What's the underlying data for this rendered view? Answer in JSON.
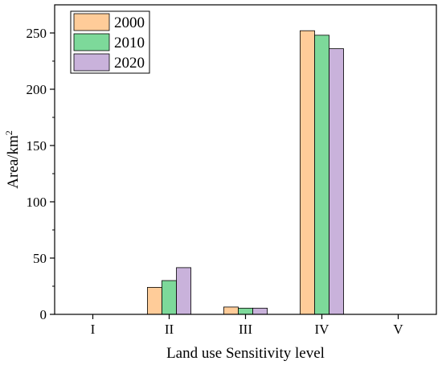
{
  "chart_data": {
    "type": "bar",
    "title": "",
    "xlabel": "Land use Sensitivity level",
    "ylabel": "Area/km",
    "ylabel_superscript": "2",
    "categories": [
      "I",
      "II",
      "III",
      "IV",
      "V"
    ],
    "ylim": [
      0,
      275
    ],
    "yticks": [
      0,
      50,
      100,
      150,
      200,
      250
    ],
    "grid": false,
    "legend_position": "top-left",
    "series": [
      {
        "name": "2000",
        "color": "#FFCC99",
        "values": [
          0,
          24,
          6.5,
          252,
          0
        ]
      },
      {
        "name": "2010",
        "color": "#7DD99A",
        "values": [
          0,
          30,
          5.5,
          248,
          0
        ]
      },
      {
        "name": "2020",
        "color": "#C9B2DB",
        "values": [
          0,
          41.5,
          5.5,
          236,
          0
        ]
      }
    ]
  }
}
